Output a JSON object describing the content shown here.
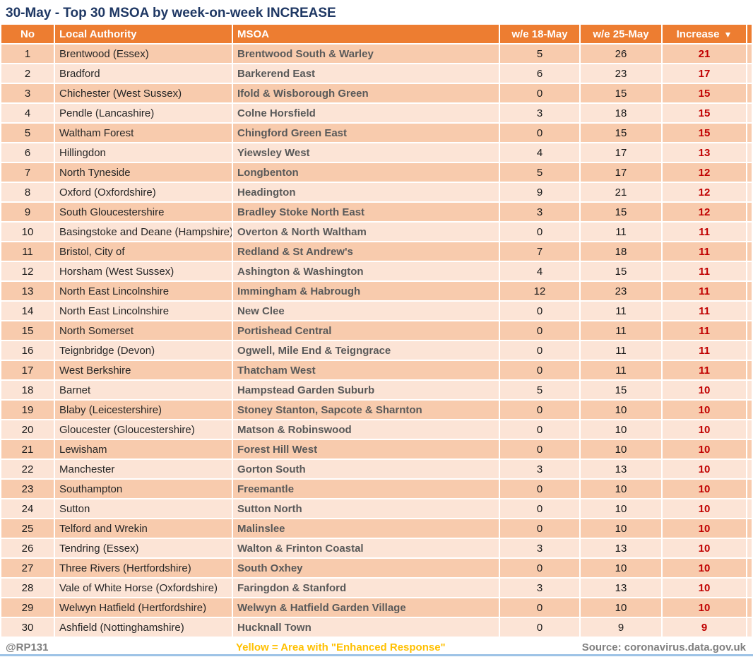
{
  "chart_data": {
    "type": "table",
    "title": "30-May - Top 30 MSOA by week-on-week INCREASE",
    "columns": [
      "No",
      "Local Authority",
      "MSOA",
      "w/e 18-May",
      "w/e 25-May",
      "Increase"
    ],
    "sort": {
      "column": "Increase",
      "direction": "desc",
      "indicator": "▼"
    },
    "rows": [
      [
        1,
        "Brentwood (Essex)",
        "Brentwood South & Warley",
        5,
        26,
        21
      ],
      [
        2,
        "Bradford",
        "Barkerend East",
        6,
        23,
        17
      ],
      [
        3,
        "Chichester (West Sussex)",
        "Ifold & Wisborough Green",
        0,
        15,
        15
      ],
      [
        4,
        "Pendle (Lancashire)",
        "Colne Horsfield",
        3,
        18,
        15
      ],
      [
        5,
        "Waltham Forest",
        "Chingford Green East",
        0,
        15,
        15
      ],
      [
        6,
        "Hillingdon",
        "Yiewsley West",
        4,
        17,
        13
      ],
      [
        7,
        "North Tyneside",
        "Longbenton",
        5,
        17,
        12
      ],
      [
        8,
        "Oxford (Oxfordshire)",
        "Headington",
        9,
        21,
        12
      ],
      [
        9,
        "South Gloucestershire",
        "Bradley Stoke North East",
        3,
        15,
        12
      ],
      [
        10,
        "Basingstoke and Deane (Hampshire)",
        "Overton & North Waltham",
        0,
        11,
        11
      ],
      [
        11,
        "Bristol, City of",
        "Redland & St Andrew's",
        7,
        18,
        11
      ],
      [
        12,
        "Horsham (West Sussex)",
        "Ashington & Washington",
        4,
        15,
        11
      ],
      [
        13,
        "North East Lincolnshire",
        "Immingham & Habrough",
        12,
        23,
        11
      ],
      [
        14,
        "North East Lincolnshire",
        "New Clee",
        0,
        11,
        11
      ],
      [
        15,
        "North Somerset",
        "Portishead Central",
        0,
        11,
        11
      ],
      [
        16,
        "Teignbridge (Devon)",
        "Ogwell, Mile End & Teigngrace",
        0,
        11,
        11
      ],
      [
        17,
        "West Berkshire",
        "Thatcham West",
        0,
        11,
        11
      ],
      [
        18,
        "Barnet",
        "Hampstead Garden Suburb",
        5,
        15,
        10
      ],
      [
        19,
        "Blaby (Leicestershire)",
        "Stoney Stanton, Sapcote & Sharnton",
        0,
        10,
        10
      ],
      [
        20,
        "Gloucester (Gloucestershire)",
        "Matson & Robinswood",
        0,
        10,
        10
      ],
      [
        21,
        "Lewisham",
        "Forest Hill West",
        0,
        10,
        10
      ],
      [
        22,
        "Manchester",
        "Gorton South",
        3,
        13,
        10
      ],
      [
        23,
        "Southampton",
        "Freemantle",
        0,
        10,
        10
      ],
      [
        24,
        "Sutton",
        "Sutton North",
        0,
        10,
        10
      ],
      [
        25,
        "Telford and Wrekin",
        "Malinslee",
        0,
        10,
        10
      ],
      [
        26,
        "Tendring (Essex)",
        "Walton & Frinton Coastal",
        3,
        13,
        10
      ],
      [
        27,
        "Three Rivers (Hertfordshire)",
        "South Oxhey",
        0,
        10,
        10
      ],
      [
        28,
        "Vale of White Horse (Oxfordshire)",
        "Faringdon & Stanford",
        3,
        13,
        10
      ],
      [
        29,
        "Welwyn Hatfield (Hertfordshire)",
        "Welwyn & Hatfield Garden Village",
        0,
        10,
        10
      ],
      [
        30,
        "Ashfield (Nottinghamshire)",
        "Hucknall Town",
        0,
        9,
        9
      ]
    ]
  },
  "footer": {
    "handle": "@RP131",
    "note": "Yellow = Area with \"Enhanced Response\"",
    "source": "Source: coronavirus.data.gov.uk"
  },
  "colors": {
    "header_orange": "#ED7D31",
    "row_dark": "#F8CBAD",
    "row_light": "#FCE4D6",
    "title_navy": "#1F3864",
    "increase_red": "#C00000",
    "note_yellow": "#FFC000",
    "footer_gray": "#808080",
    "bottom_line_blue": "#9DC3E6"
  }
}
